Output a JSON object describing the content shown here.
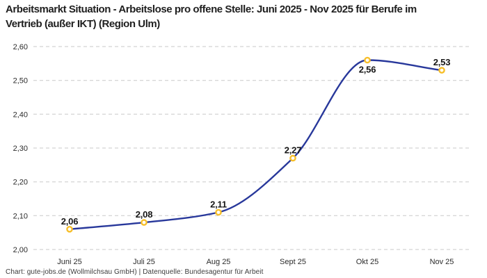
{
  "chart_data": {
    "type": "line",
    "title": "Arbeitsmarkt Situation - Arbeitslose pro offene Stelle: Juni 2025 - Nov 2025 für Berufe im Vertrieb (außer IKT) (Region Ulm)",
    "categories": [
      "Juni 25",
      "Juli 25",
      "Aug 25",
      "Sept 25",
      "Okt 25",
      "Nov 25"
    ],
    "values": [
      2.06,
      2.08,
      2.11,
      2.27,
      2.56,
      2.53
    ],
    "value_labels": [
      "2,06",
      "2,08",
      "2,11",
      "2,27",
      "2,56",
      "2,53"
    ],
    "label_positions": [
      "above",
      "above",
      "above",
      "above",
      "below",
      "above"
    ],
    "xlabel": "",
    "ylabel": "",
    "ylim": [
      2.0,
      2.6
    ],
    "yticks": [
      2.0,
      2.1,
      2.2,
      2.3,
      2.4,
      2.5,
      2.6
    ],
    "ytick_labels": [
      "2,00",
      "2,10",
      "2,20",
      "2,30",
      "2,40",
      "2,50",
      "2,60"
    ],
    "grid": "horizontal-dashed",
    "legend": "none",
    "curve": "monotone",
    "colors": {
      "line": "#28389b",
      "marker_ring": "#f7bf2a",
      "marker_fill": "#ffffff",
      "grid": "#c9c9c9",
      "tick": "#2b2b2b",
      "label": "#151515"
    }
  },
  "footer": {
    "attribution": "Chart: gute-jobs.de (Wollmilchsau GmbH) | Datenquelle: Bundesagentur für Arbeit"
  }
}
